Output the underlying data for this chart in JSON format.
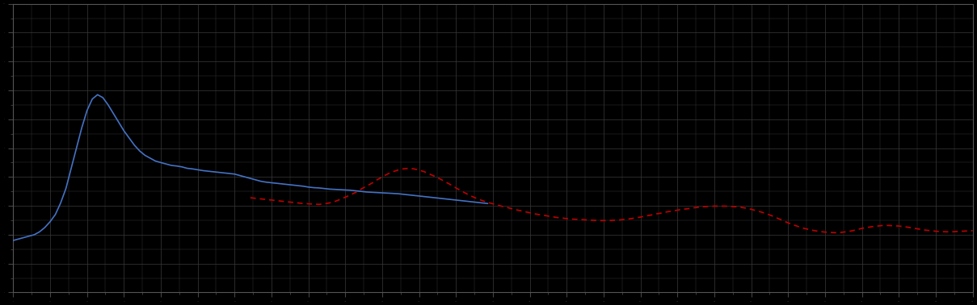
{
  "background_color": "#000000",
  "axes_background_color": "#000000",
  "grid_color": "#3a3a3a",
  "blue_line_color": "#4472c4",
  "red_line_color": "#c00000",
  "figure_size": [
    12.09,
    3.78
  ],
  "dpi": 100,
  "xlim": [
    0,
    364
  ],
  "ylim": [
    0,
    10
  ],
  "blue_x": [
    0,
    2,
    4,
    6,
    8,
    10,
    12,
    14,
    16,
    18,
    20,
    22,
    24,
    26,
    28,
    30,
    32,
    34,
    36,
    38,
    40,
    42,
    44,
    46,
    48,
    50,
    52,
    54,
    56,
    58,
    60,
    62,
    64,
    66,
    68,
    70,
    72,
    74,
    76,
    78,
    80,
    82,
    84,
    86,
    88,
    90,
    92,
    94,
    96,
    98,
    100,
    102,
    104,
    106,
    108,
    110,
    112,
    114,
    116,
    118,
    120,
    122,
    124,
    126,
    128,
    130,
    132,
    134,
    136,
    138,
    140,
    142,
    144,
    146,
    148,
    150,
    152,
    154,
    156,
    158,
    160,
    162,
    164,
    166,
    168,
    170,
    172,
    174,
    176,
    178,
    180
  ],
  "blue_y": [
    1.8,
    1.85,
    1.9,
    1.95,
    2.0,
    2.1,
    2.25,
    2.45,
    2.7,
    3.1,
    3.6,
    4.3,
    5.0,
    5.7,
    6.3,
    6.7,
    6.85,
    6.75,
    6.5,
    6.2,
    5.9,
    5.6,
    5.35,
    5.1,
    4.9,
    4.75,
    4.65,
    4.55,
    4.5,
    4.45,
    4.4,
    4.38,
    4.35,
    4.3,
    4.28,
    4.25,
    4.22,
    4.2,
    4.18,
    4.16,
    4.14,
    4.12,
    4.1,
    4.05,
    4.0,
    3.95,
    3.9,
    3.85,
    3.82,
    3.8,
    3.78,
    3.76,
    3.74,
    3.72,
    3.7,
    3.68,
    3.65,
    3.63,
    3.62,
    3.6,
    3.58,
    3.57,
    3.56,
    3.55,
    3.54,
    3.52,
    3.5,
    3.48,
    3.47,
    3.46,
    3.45,
    3.44,
    3.43,
    3.42,
    3.4,
    3.38,
    3.36,
    3.34,
    3.32,
    3.3,
    3.28,
    3.26,
    3.24,
    3.22,
    3.2,
    3.18,
    3.16,
    3.14,
    3.12,
    3.1,
    3.08
  ],
  "red_x": [
    90,
    92,
    94,
    96,
    98,
    100,
    102,
    104,
    106,
    108,
    110,
    112,
    114,
    116,
    118,
    120,
    122,
    124,
    126,
    128,
    130,
    132,
    134,
    136,
    138,
    140,
    142,
    144,
    146,
    148,
    150,
    152,
    154,
    156,
    158,
    160,
    162,
    164,
    166,
    168,
    170,
    172,
    174,
    176,
    178,
    180,
    182,
    184,
    186,
    188,
    190,
    192,
    194,
    196,
    198,
    200,
    202,
    204,
    206,
    208,
    210,
    212,
    214,
    216,
    218,
    220,
    222,
    224,
    226,
    228,
    230,
    232,
    234,
    236,
    238,
    240,
    242,
    244,
    246,
    248,
    250,
    252,
    254,
    256,
    258,
    260,
    262,
    264,
    266,
    268,
    270,
    272,
    274,
    276,
    278,
    280,
    282,
    284,
    286,
    288,
    290,
    292,
    294,
    296,
    298,
    300,
    302,
    304,
    306,
    308,
    310,
    312,
    314,
    316,
    318,
    320,
    322,
    324,
    326,
    328,
    330,
    332,
    334,
    336,
    338,
    340,
    342,
    344,
    346,
    348,
    350,
    352,
    354,
    356,
    358,
    360,
    362,
    364
  ],
  "red_y": [
    3.28,
    3.26,
    3.24,
    3.22,
    3.2,
    3.18,
    3.16,
    3.14,
    3.12,
    3.1,
    3.08,
    3.07,
    3.06,
    3.05,
    3.07,
    3.1,
    3.15,
    3.22,
    3.3,
    3.38,
    3.47,
    3.58,
    3.68,
    3.78,
    3.9,
    4.0,
    4.1,
    4.18,
    4.24,
    4.28,
    4.3,
    4.28,
    4.24,
    4.18,
    4.1,
    4.02,
    3.93,
    3.83,
    3.73,
    3.62,
    3.52,
    3.42,
    3.33,
    3.25,
    3.18,
    3.12,
    3.07,
    3.02,
    2.97,
    2.93,
    2.88,
    2.84,
    2.8,
    2.76,
    2.72,
    2.69,
    2.66,
    2.63,
    2.6,
    2.58,
    2.56,
    2.54,
    2.53,
    2.52,
    2.51,
    2.5,
    2.49,
    2.49,
    2.49,
    2.5,
    2.51,
    2.53,
    2.55,
    2.58,
    2.61,
    2.65,
    2.68,
    2.72,
    2.75,
    2.79,
    2.82,
    2.85,
    2.88,
    2.9,
    2.93,
    2.95,
    2.97,
    2.98,
    2.99,
    2.99,
    2.99,
    2.98,
    2.97,
    2.95,
    2.92,
    2.88,
    2.83,
    2.78,
    2.72,
    2.65,
    2.57,
    2.49,
    2.41,
    2.34,
    2.28,
    2.22,
    2.18,
    2.14,
    2.11,
    2.09,
    2.08,
    2.07,
    2.08,
    2.1,
    2.13,
    2.17,
    2.22,
    2.25,
    2.28,
    2.3,
    2.32,
    2.32,
    2.31,
    2.3,
    2.28,
    2.25,
    2.22,
    2.19,
    2.16,
    2.14,
    2.12,
    2.11,
    2.1,
    2.1,
    2.11,
    2.12,
    2.13,
    2.14
  ]
}
